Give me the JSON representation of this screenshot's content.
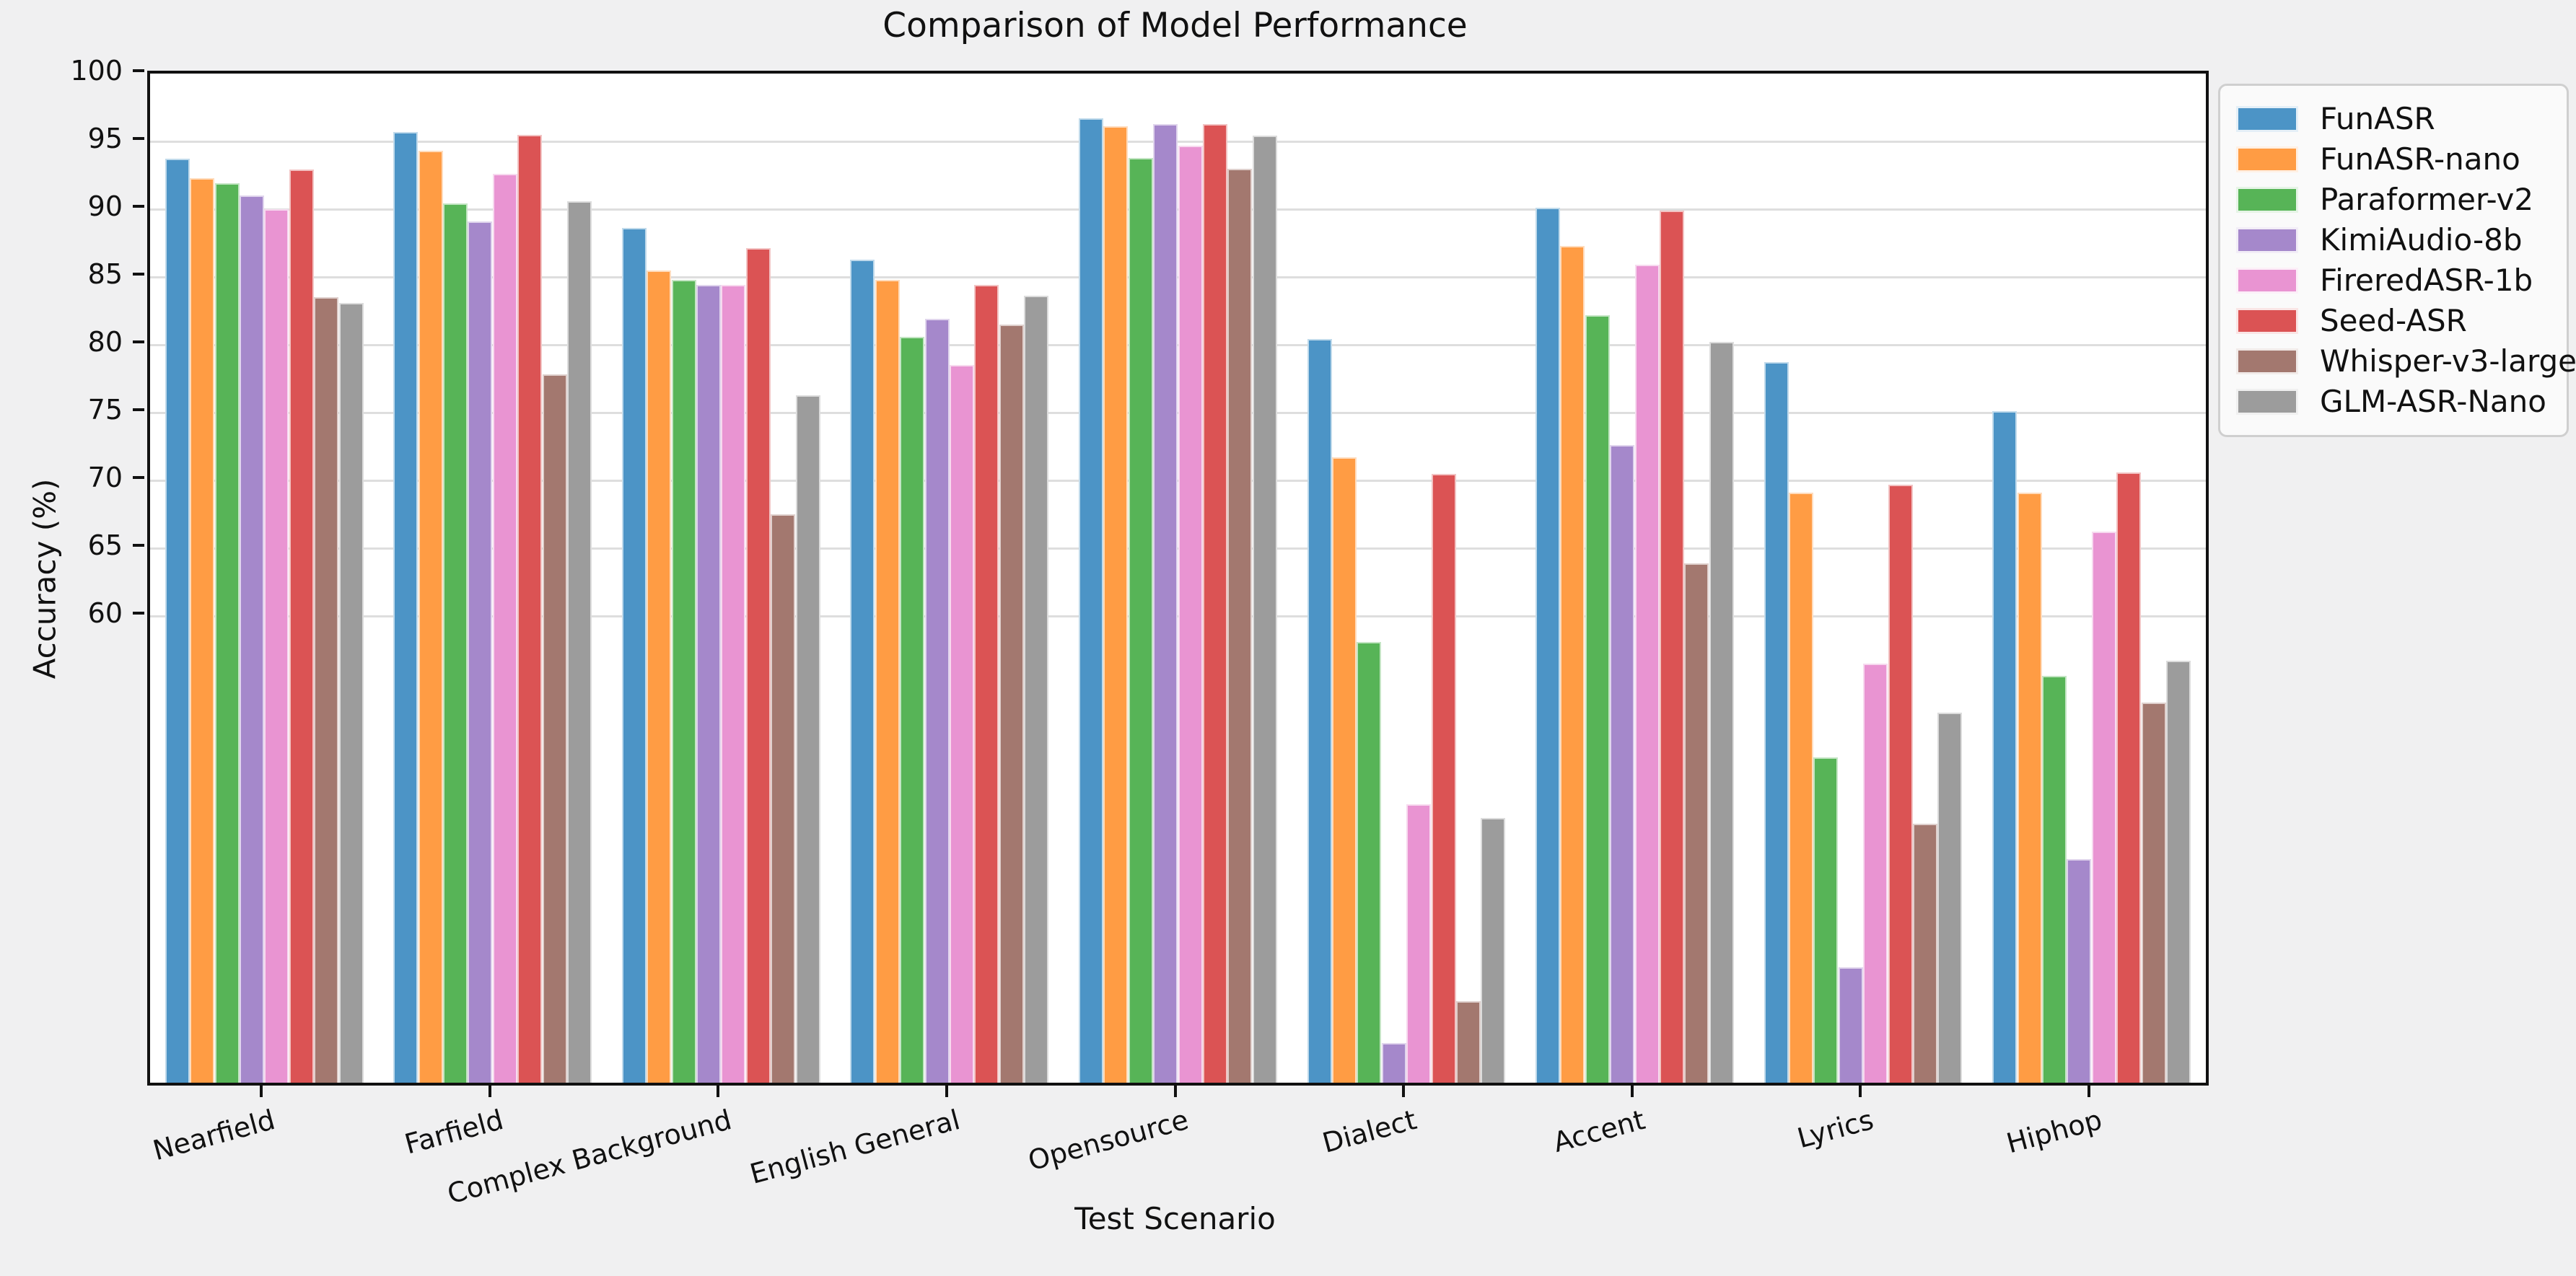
{
  "title": "Comparison of Model Performance",
  "x_axis_label": "Test Scenario",
  "y_axis_label": "Accuracy (%)",
  "chart_data": {
    "type": "bar",
    "title": "Comparison of Model Performance",
    "xlabel": "Test Scenario",
    "ylabel": "Accuracy (%)",
    "categories": [
      "Nearfield",
      "Farfield",
      "Complex Background",
      "English General",
      "Opensource",
      "Dialect",
      "Accent",
      "Lyrics",
      "Hiphop"
    ],
    "series": [
      {
        "name": "FunASR",
        "color": "#4C94C6",
        "values": [
          93.6,
          95.6,
          88.5,
          86.2,
          96.6,
          80.3,
          90.0,
          78.6,
          75.0
        ]
      },
      {
        "name": "FunASR-nano",
        "color": "#FF9C44",
        "values": [
          92.2,
          94.2,
          85.4,
          84.7,
          96.0,
          71.6,
          87.2,
          69.0,
          69.0
        ]
      },
      {
        "name": "Paraformer-v2",
        "color": "#57B457",
        "values": [
          91.8,
          90.3,
          84.7,
          80.5,
          93.7,
          58.0,
          82.1,
          49.5,
          55.5
        ]
      },
      {
        "name": "KimiAudio-8b",
        "color": "#A588CB",
        "values": [
          90.9,
          89.0,
          84.3,
          81.8,
          96.2,
          28.4,
          72.5,
          34.0,
          42.0
        ]
      },
      {
        "name": "FireredASR-1b",
        "color": "#E994D2",
        "values": [
          89.9,
          92.5,
          84.3,
          78.4,
          94.6,
          46.0,
          85.8,
          56.4,
          66.1
        ]
      },
      {
        "name": "Seed-ASR",
        "color": "#DB5354",
        "values": [
          92.8,
          95.4,
          87.0,
          84.3,
          96.2,
          70.4,
          89.8,
          69.6,
          70.5
        ]
      },
      {
        "name": "Whisper-v3-large",
        "color": "#A3786F",
        "values": [
          83.4,
          77.7,
          67.4,
          81.4,
          92.9,
          31.5,
          63.8,
          44.6,
          53.5
        ]
      },
      {
        "name": "GLM-ASR-Nano",
        "color": "#9C9C9C",
        "values": [
          83.0,
          90.5,
          76.2,
          83.5,
          95.3,
          45.0,
          80.1,
          52.8,
          56.6
        ]
      }
    ],
    "ylim": [
      25.6,
      100
    ],
    "yticks": [
      60,
      65,
      70,
      75,
      80,
      85,
      90,
      95,
      100
    ],
    "grid": "horizontal",
    "gridline_color": "#dedede",
    "legend_position": "outside-upper-right",
    "plot_background": "#ffffff",
    "figure_background": "#f0f0f1"
  }
}
